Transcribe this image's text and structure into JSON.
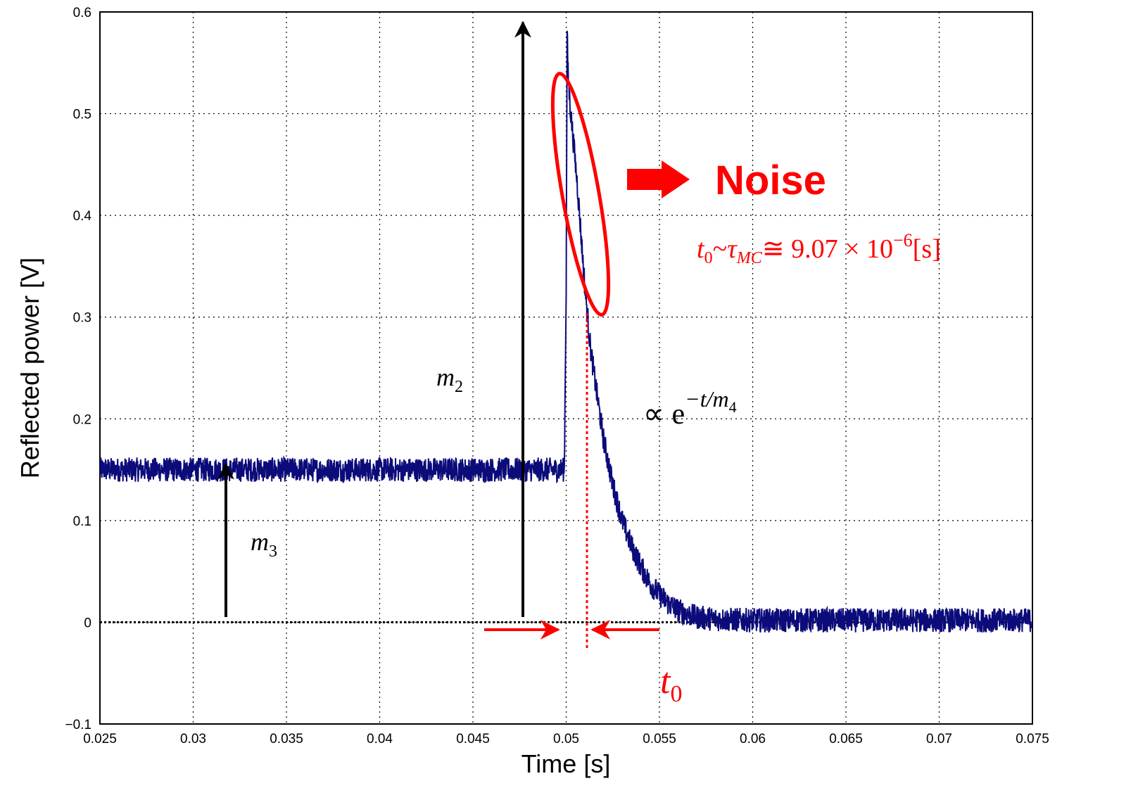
{
  "chart_data": {
    "type": "line",
    "xlabel": "Time [s]",
    "ylabel": "Reflected power [V]",
    "xlim": [
      0.025,
      0.075
    ],
    "ylim": [
      -0.1,
      0.6
    ],
    "x_ticks": [
      "0.025",
      "0.03",
      "0.035",
      "0.04",
      "0.045",
      "0.05",
      "0.055",
      "0.06",
      "0.065",
      "0.07",
      "0.075"
    ],
    "y_ticks": [
      "−0.1",
      "0",
      "0.1",
      "0.2",
      "0.3",
      "0.4",
      "0.5",
      "0.6"
    ],
    "grid": true,
    "series_color": "#0b0b7a",
    "series": [
      {
        "x": [
          0.025,
          0.0499,
          0.05,
          0.05005,
          0.0501,
          0.0502,
          0.0504,
          0.0506,
          0.0508,
          0.051,
          0.0513,
          0.0516,
          0.052,
          0.0525,
          0.053,
          0.0535,
          0.054,
          0.0545,
          0.055,
          0.0555,
          0.056,
          0.0565,
          0.057,
          0.058,
          0.06,
          0.065,
          0.07,
          0.075
        ],
        "y": [
          0.15,
          0.15,
          0.33,
          0.58,
          0.54,
          0.51,
          0.47,
          0.43,
          0.38,
          0.33,
          0.27,
          0.23,
          0.18,
          0.135,
          0.1,
          0.075,
          0.055,
          0.038,
          0.027,
          0.018,
          0.012,
          0.008,
          0.005,
          0.003,
          0.002,
          0.002,
          0.002,
          0.002
        ],
        "noise_amplitude": 0.012
      }
    ],
    "reference_line": {
      "y": 0,
      "style": "dotted"
    },
    "annotations": {
      "m2_label": "m",
      "m2_sub": "2",
      "m3_label": "m",
      "m3_sub": "3",
      "decay_prefix": "∝ e",
      "decay_exp": "−t/m",
      "decay_exp_sub": "4",
      "noise_label": "Noise",
      "t0_label": "t",
      "t0_sub": "0",
      "formula_t": "t",
      "formula_t_sub": "0",
      "formula_tilde": "~",
      "formula_tau": "τ",
      "formula_tau_sub": "MC",
      "formula_rest": "≅ 9.07 × 10",
      "formula_exp": "−6",
      "formula_unit": "[s]",
      "annotation_color": "#ff0000"
    }
  }
}
